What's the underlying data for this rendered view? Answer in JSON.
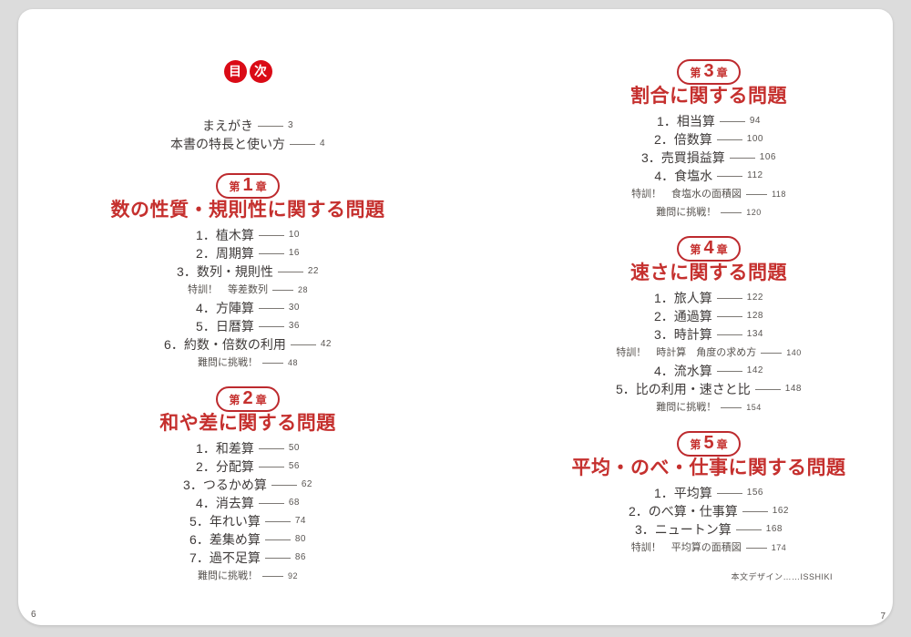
{
  "colors": {
    "background_gray": "#dcdcdc",
    "page_white": "#ffffff",
    "toc_badge_red": "#da0b16",
    "chapter_red": "#c5302e",
    "item_text": "#3e3a39"
  },
  "toc": {
    "title_chars": [
      "目",
      "次"
    ],
    "frontmatter": [
      {
        "label": "まえがき",
        "page": "3"
      },
      {
        "label": "本書の特長と使い方",
        "page": "4"
      }
    ]
  },
  "chapters": [
    {
      "column": "left",
      "badge": {
        "prefix": "第",
        "number": "1",
        "suffix": "章"
      },
      "title": "数の性質・規則性に関する問題",
      "items": [
        {
          "kind": "numbered",
          "label": "1．植木算",
          "page": "10"
        },
        {
          "kind": "numbered",
          "label": "2．周期算",
          "page": "16"
        },
        {
          "kind": "numbered",
          "label": "3．数列・規則性",
          "page": "22"
        },
        {
          "kind": "special",
          "label": "特訓！　等差数列",
          "page": "28"
        },
        {
          "kind": "numbered",
          "label": "4．方陣算",
          "page": "30"
        },
        {
          "kind": "numbered",
          "label": "5．日暦算",
          "page": "36"
        },
        {
          "kind": "numbered",
          "label": "6．約数・倍数の利用",
          "page": "42"
        },
        {
          "kind": "special",
          "label": "難問に挑戦！",
          "page": "48"
        }
      ]
    },
    {
      "column": "left",
      "badge": {
        "prefix": "第",
        "number": "2",
        "suffix": "章"
      },
      "title": "和や差に関する問題",
      "items": [
        {
          "kind": "numbered",
          "label": "1．和差算",
          "page": "50"
        },
        {
          "kind": "numbered",
          "label": "2．分配算",
          "page": "56"
        },
        {
          "kind": "numbered",
          "label": "3．つるかめ算",
          "page": "62"
        },
        {
          "kind": "numbered",
          "label": "4．消去算",
          "page": "68"
        },
        {
          "kind": "numbered",
          "label": "5．年れい算",
          "page": "74"
        },
        {
          "kind": "numbered",
          "label": "6．差集め算",
          "page": "80"
        },
        {
          "kind": "numbered",
          "label": "7．過不足算",
          "page": "86"
        },
        {
          "kind": "special",
          "label": "難問に挑戦！",
          "page": "92"
        }
      ]
    },
    {
      "column": "right",
      "badge": {
        "prefix": "第",
        "number": "3",
        "suffix": "章"
      },
      "title": "割合に関する問題",
      "items": [
        {
          "kind": "numbered",
          "label": "1．相当算",
          "page": "94"
        },
        {
          "kind": "numbered",
          "label": "2．倍数算",
          "page": "100"
        },
        {
          "kind": "numbered",
          "label": "3．売買損益算",
          "page": "106"
        },
        {
          "kind": "numbered",
          "label": "4．食塩水",
          "page": "112"
        },
        {
          "kind": "special",
          "label": "特訓！　食塩水の面積図",
          "page": "118"
        },
        {
          "kind": "special",
          "label": "難問に挑戦！",
          "page": "120"
        }
      ]
    },
    {
      "column": "right",
      "badge": {
        "prefix": "第",
        "number": "4",
        "suffix": "章"
      },
      "title": "速さに関する問題",
      "items": [
        {
          "kind": "numbered",
          "label": "1．旅人算",
          "page": "122"
        },
        {
          "kind": "numbered",
          "label": "2．通過算",
          "page": "128"
        },
        {
          "kind": "numbered",
          "label": "3．時計算",
          "page": "134"
        },
        {
          "kind": "special",
          "label": "特訓！　時計算　角度の求め方",
          "page": "140"
        },
        {
          "kind": "numbered",
          "label": "4．流水算",
          "page": "142"
        },
        {
          "kind": "numbered",
          "label": "5．比の利用・速さと比",
          "page": "148"
        },
        {
          "kind": "special",
          "label": "難問に挑戦！",
          "page": "154"
        }
      ]
    },
    {
      "column": "right",
      "badge": {
        "prefix": "第",
        "number": "5",
        "suffix": "章"
      },
      "title": "平均・のべ・仕事に関する問題",
      "items": [
        {
          "kind": "numbered",
          "label": "1．平均算",
          "page": "156"
        },
        {
          "kind": "numbered",
          "label": "2．のべ算・仕事算",
          "page": "162"
        },
        {
          "kind": "numbered",
          "label": "3．ニュートン算",
          "page": "168"
        },
        {
          "kind": "special",
          "label": "特訓！　平均算の面積図",
          "page": "174"
        }
      ]
    }
  ],
  "footer": {
    "credit": "本文デザイン……ISSHIKI",
    "left_page_number": "6",
    "right_page_number": "7"
  }
}
